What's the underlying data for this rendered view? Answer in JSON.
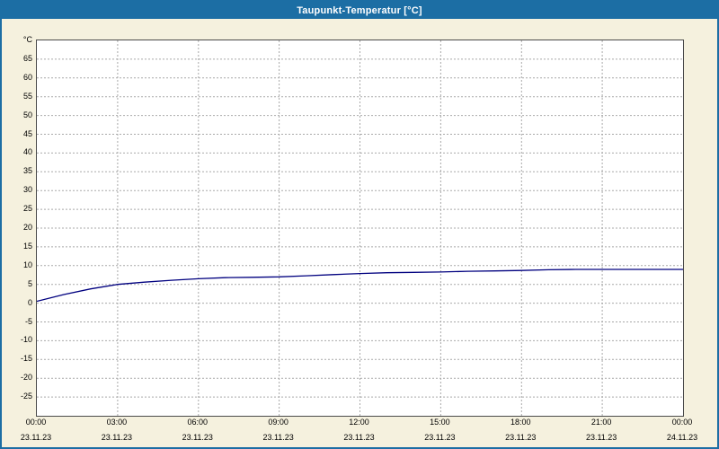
{
  "window": {
    "title": "Taupunkt-Temperatur [°C]"
  },
  "chart_data": {
    "type": "line",
    "title": "Taupunkt-Temperatur [°C]",
    "xlabel": "",
    "ylabel": "°C",
    "ylim": [
      -30,
      70
    ],
    "xlim_hours": [
      0,
      24
    ],
    "grid": "dashed",
    "legend": "none",
    "line_color": "#00007f",
    "yticks": [
      65,
      60,
      55,
      50,
      45,
      40,
      35,
      30,
      25,
      20,
      15,
      10,
      5,
      0,
      -5,
      -10,
      -15,
      -20,
      -25
    ],
    "xticks": [
      {
        "hour": 0,
        "time": "00:00",
        "date": "23.11.23"
      },
      {
        "hour": 3,
        "time": "03:00",
        "date": "23.11.23"
      },
      {
        "hour": 6,
        "time": "06:00",
        "date": "23.11.23"
      },
      {
        "hour": 9,
        "time": "09:00",
        "date": "23.11.23"
      },
      {
        "hour": 12,
        "time": "12:00",
        "date": "23.11.23"
      },
      {
        "hour": 15,
        "time": "15:00",
        "date": "23.11.23"
      },
      {
        "hour": 18,
        "time": "18:00",
        "date": "23.11.23"
      },
      {
        "hour": 21,
        "time": "21:00",
        "date": "23.11.23"
      },
      {
        "hour": 24,
        "time": "00:00",
        "date": "24.11.23"
      }
    ],
    "series": [
      {
        "name": "Taupunkt-Temperatur",
        "x_hours": [
          0,
          1,
          2,
          3,
          4,
          5,
          6,
          7,
          8,
          9,
          10,
          11,
          12,
          13,
          14,
          15,
          16,
          17,
          18,
          19,
          20,
          21,
          22,
          23,
          24
        ],
        "values": [
          0.5,
          2.3,
          3.8,
          5.0,
          5.6,
          6.1,
          6.5,
          6.8,
          6.9,
          7.0,
          7.3,
          7.6,
          7.9,
          8.1,
          8.2,
          8.3,
          8.5,
          8.6,
          8.7,
          8.9,
          9.0,
          9.0,
          9.0,
          9.0,
          9.0
        ]
      }
    ]
  }
}
